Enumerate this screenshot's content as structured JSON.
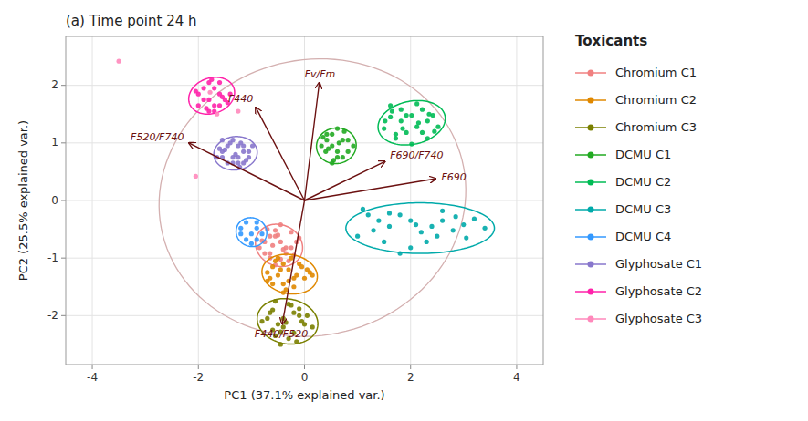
{
  "chart_data": {
    "type": "scatter",
    "title": "(a) Time point 24 h",
    "xlabel": "PC1 (37.1% explained var.)",
    "ylabel": "PC2 (25.5% explained var.)",
    "xlim": [
      -4.5,
      4.5
    ],
    "ylim": [
      -2.85,
      2.85
    ],
    "xticks": [
      -4,
      -2,
      0,
      2,
      4
    ],
    "yticks": [
      -2,
      -1,
      0,
      1,
      2
    ],
    "grid": true,
    "legend_title": "Toxicants",
    "series": [
      {
        "name": "Chromium C1",
        "color": "#f08080",
        "x": [
          -0.55,
          -0.45,
          -0.35,
          -0.65,
          -0.75,
          -0.45,
          -0.55,
          -0.25,
          -0.65,
          -0.35,
          -0.15,
          -0.55,
          -0.75,
          -0.45,
          -0.85,
          -0.1,
          -0.7,
          -0.3,
          -0.6,
          -0.2,
          -0.5,
          -0.4,
          -0.8,
          -0.25,
          -0.65
        ],
        "values": [
          -0.62,
          -0.72,
          -0.82,
          -0.92,
          -0.72,
          -1.02,
          -0.52,
          -0.82,
          -0.62,
          -0.92,
          -0.72,
          -1.12,
          -0.92,
          -0.42,
          -0.82,
          -0.65,
          -0.5,
          -1.05,
          -0.78,
          -0.95,
          -0.6,
          -0.85,
          -0.7,
          -0.55,
          -1.0
        ],
        "ellipse": {
          "cx": -0.48,
          "cy": -0.78,
          "w": 0.9,
          "h": 0.72,
          "angle": -15
        }
      },
      {
        "name": "Chromium C2",
        "color": "#e08800",
        "x": [
          -0.4,
          -0.3,
          -0.5,
          -0.2,
          -0.6,
          -0.4,
          -0.1,
          -0.5,
          -0.7,
          -0.3,
          -0.05,
          -0.6,
          0.1,
          -0.2,
          -0.55,
          0.0,
          -0.45,
          -0.15,
          -0.35,
          -0.65,
          0.05,
          -0.25,
          -0.7,
          0.15,
          -0.4
        ],
        "values": [
          -1.1,
          -1.2,
          -1.3,
          -1.35,
          -1.15,
          -1.45,
          -1.1,
          -1.0,
          -1.25,
          -1.4,
          -1.15,
          -1.45,
          -1.25,
          -1.5,
          -1.05,
          -1.35,
          -1.2,
          -1.3,
          -1.55,
          -1.35,
          -1.2,
          -1.0,
          -1.4,
          -1.3,
          -1.6
        ],
        "ellipse": {
          "cx": -0.28,
          "cy": -1.28,
          "w": 1.05,
          "h": 0.68,
          "angle": -8
        }
      },
      {
        "name": "Chromium C3",
        "color": "#7a8000",
        "x": [
          -0.3,
          -0.2,
          -0.4,
          -0.5,
          -0.1,
          -0.6,
          -0.05,
          -0.4,
          -0.7,
          -0.2,
          -0.55,
          0.05,
          -0.3,
          -0.6,
          -0.1,
          -0.45,
          -0.8,
          0.15,
          -0.25,
          -0.35,
          -0.55,
          -0.15,
          0.0,
          -0.65,
          -0.45
        ],
        "values": [
          -1.8,
          -1.95,
          -2.05,
          -2.15,
          -2.0,
          -1.9,
          -2.1,
          -2.2,
          -2.05,
          -2.3,
          -1.75,
          -2.0,
          -2.4,
          -2.25,
          -1.88,
          -2.5,
          -2.1,
          -2.2,
          -1.82,
          -2.12,
          -2.35,
          -2.45,
          -2.15,
          -1.95,
          -2.28
        ],
        "ellipse": {
          "cx": -0.32,
          "cy": -2.1,
          "w": 1.15,
          "h": 0.78,
          "angle": -8
        }
      },
      {
        "name": "DCMU C1",
        "color": "#22aa22",
        "x": [
          0.4,
          0.52,
          0.62,
          0.72,
          0.42,
          0.82,
          0.32,
          0.62,
          0.52,
          0.92,
          0.42,
          0.72,
          0.52,
          0.82,
          0.62,
          0.35,
          0.75,
          0.55,
          0.45,
          0.65
        ],
        "values": [
          0.85,
          0.95,
          0.75,
          1.05,
          1.15,
          0.85,
          0.95,
          1.25,
          0.65,
          0.95,
          1.05,
          0.75,
          1.15,
          1.05,
          0.85,
          1.1,
          1.2,
          0.7,
          0.9,
          1.0
        ],
        "ellipse": {
          "cx": 0.6,
          "cy": 0.95,
          "w": 0.75,
          "h": 0.62,
          "angle": 5
        }
      },
      {
        "name": "DCMU C2",
        "color": "#00bb55",
        "x": [
          1.5,
          1.62,
          1.72,
          1.82,
          2.02,
          2.12,
          2.22,
          1.92,
          2.32,
          1.62,
          2.02,
          2.42,
          1.82,
          2.52,
          1.72,
          2.22,
          1.52,
          2.12,
          1.92,
          2.32,
          1.65,
          2.15,
          2.45,
          1.85,
          2.35
        ],
        "values": [
          1.25,
          1.45,
          1.15,
          1.38,
          1.48,
          1.28,
          1.58,
          1.18,
          1.38,
          1.65,
          0.98,
          1.48,
          1.58,
          1.28,
          1.08,
          1.18,
          1.38,
          1.68,
          1.48,
          1.08,
          1.55,
          1.35,
          1.2,
          1.25,
          1.5
        ],
        "ellipse": {
          "cx": 2.02,
          "cy": 1.35,
          "w": 1.28,
          "h": 0.75,
          "angle": 10
        }
      },
      {
        "name": "DCMU C3",
        "color": "#00aaaa",
        "x": [
          1.2,
          1.4,
          1.6,
          1.8,
          2.0,
          2.2,
          2.4,
          2.6,
          1.0,
          1.5,
          2.0,
          2.5,
          3.0,
          1.3,
          1.8,
          2.3,
          2.8,
          3.2,
          1.6,
          2.1,
          3.4,
          1.1,
          2.6,
          3.05,
          2.85
        ],
        "values": [
          -0.25,
          -0.35,
          -0.45,
          -0.25,
          -0.35,
          -0.55,
          -0.45,
          -0.35,
          -0.62,
          -0.72,
          -0.82,
          -0.62,
          -0.42,
          -0.52,
          -0.92,
          -0.72,
          -0.52,
          -0.32,
          -0.22,
          -0.42,
          -0.48,
          -0.15,
          -0.18,
          -0.65,
          -0.28
        ],
        "ellipse": {
          "cx": 2.18,
          "cy": -0.48,
          "w": 2.8,
          "h": 0.88,
          "angle": 0
        }
      },
      {
        "name": "DCMU C4",
        "color": "#3399ff",
        "x": [
          -0.9,
          -1.0,
          -1.1,
          -0.9,
          -1.2,
          -1.0,
          -0.8,
          -1.1,
          -0.9,
          -1.2
        ],
        "values": [
          -0.48,
          -0.58,
          -0.38,
          -0.68,
          -0.48,
          -0.75,
          -0.58,
          -0.68,
          -0.38,
          -0.58
        ],
        "ellipse": {
          "cx": -1.0,
          "cy": -0.55,
          "w": 0.58,
          "h": 0.5,
          "angle": -10
        }
      },
      {
        "name": "Glyphosate C1",
        "color": "#8877cc",
        "x": [
          -1.25,
          -1.35,
          -1.15,
          -1.45,
          -1.25,
          -1.55,
          -1.05,
          -1.35,
          -1.15,
          -1.45,
          -1.25,
          -1.55,
          -1.05,
          -1.35,
          -1.15,
          -1.5,
          -0.98,
          -1.55,
          -1.22,
          -1.65,
          -1.4,
          -1.1,
          -1.3,
          -1.6,
          -1.2
        ],
        "values": [
          0.65,
          0.75,
          0.85,
          0.65,
          0.95,
          0.75,
          0.85,
          1.05,
          0.65,
          0.95,
          0.75,
          0.85,
          0.75,
          0.65,
          0.95,
          0.88,
          0.95,
          1.05,
          0.58,
          0.75,
          1.0,
          0.7,
          0.8,
          0.9,
          1.0
        ],
        "ellipse": {
          "cx": -1.3,
          "cy": 0.82,
          "w": 0.82,
          "h": 0.58,
          "angle": 5
        }
      },
      {
        "name": "Glyphosate C2",
        "color": "#ff22aa",
        "x": [
          -1.7,
          -1.8,
          -1.6,
          -1.9,
          -1.7,
          -2.0,
          -1.5,
          -1.8,
          -1.6,
          -1.9,
          -1.7,
          -2.0,
          -1.4,
          -1.8,
          -1.6,
          -2.05,
          -1.55,
          -1.75,
          -1.85,
          -1.45
        ],
        "values": [
          1.65,
          1.75,
          1.85,
          1.75,
          1.95,
          1.85,
          1.75,
          2.05,
          1.65,
          1.95,
          1.55,
          1.65,
          1.85,
          1.55,
          2.05,
          1.9,
          1.8,
          2.1,
          1.6,
          1.7
        ],
        "ellipse": {
          "cx": -1.75,
          "cy": 1.82,
          "w": 0.88,
          "h": 0.62,
          "angle": 15
        }
      },
      {
        "name": "Glyphosate C3",
        "color": "#ff88bb",
        "x": [
          -3.5,
          -1.78,
          -2.05,
          -1.65,
          -1.25
        ],
        "values": [
          2.42,
          1.88,
          0.42,
          1.5,
          1.55
        ],
        "ellipse": null
      }
    ],
    "arrows": [
      {
        "label": "Fv/Fm",
        "ex": 0.28,
        "ey": 2.05,
        "color": "#6b1010"
      },
      {
        "label": "F690/F740",
        "ex": 1.52,
        "ey": 0.68,
        "color": "#6b1010"
      },
      {
        "label": "F690",
        "ex": 2.48,
        "ey": 0.38,
        "color": "#6b1010"
      },
      {
        "label": "F520/F740",
        "ex": -2.18,
        "ey": 1.0,
        "color": "#6b1010"
      },
      {
        "label": "F440",
        "ex": -0.92,
        "ey": 1.62,
        "color": "#6b1010"
      },
      {
        "label": "F440/F520",
        "ex": -0.42,
        "ey": -2.15,
        "color": "#6b1010"
      }
    ],
    "large_ellipse": {
      "cx": 0.15,
      "cy": 0.05,
      "w": 5.8,
      "h": 4.8,
      "angle": 8,
      "color": "#d4b0b0"
    }
  }
}
